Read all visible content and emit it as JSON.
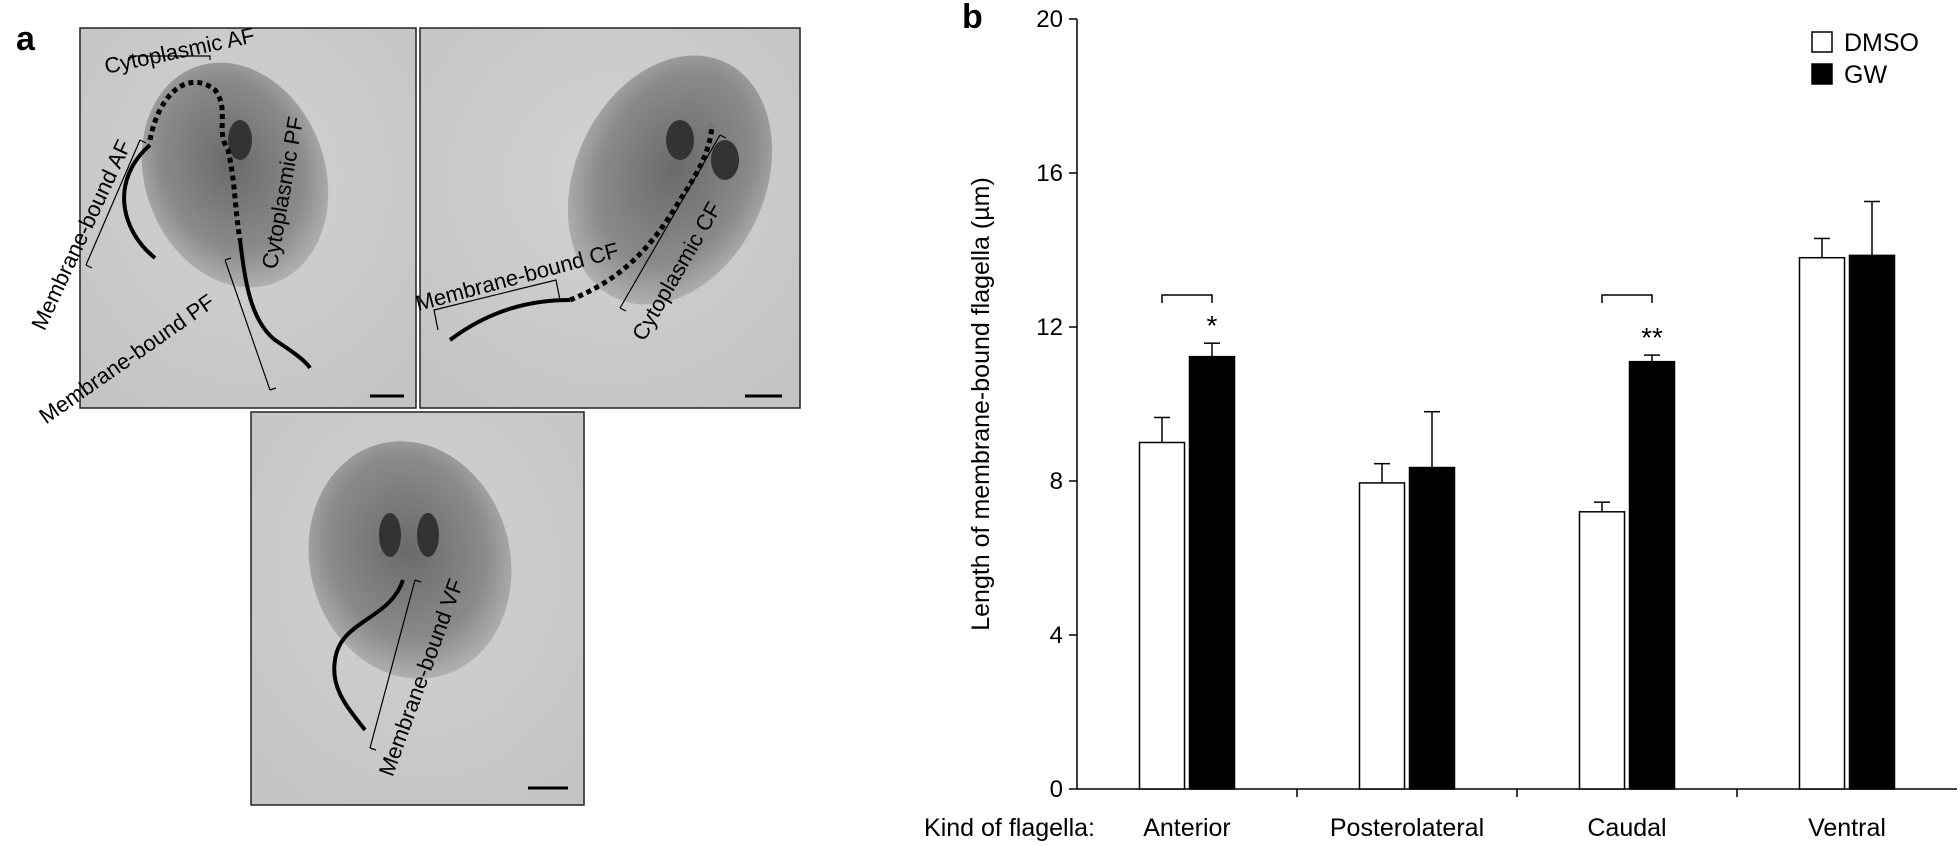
{
  "panel_labels": [
    "a",
    "b"
  ],
  "micrographs": [
    {
      "labels": [
        "Cytoplasmic AF",
        "Membrane-bound AF",
        "Cytoplasmic PF",
        "Membrane-bound PF"
      ]
    },
    {
      "labels": [
        "Membrane-bound CF",
        "Cytoplasmic CF"
      ]
    },
    {
      "labels": [
        "Membrane-bound VF"
      ]
    }
  ],
  "chart_data": {
    "type": "bar",
    "y_label": "Length of membrane-bound flagella (µm)",
    "x_label": "Kind of flagella:",
    "categories": [
      "Anterior",
      "Posterolateral",
      "Caudal",
      "Ventral"
    ],
    "series": [
      {
        "name": "DMSO",
        "color": "#ffffff",
        "values": [
          9.0,
          7.95,
          7.2,
          13.8
        ],
        "errors": [
          0.65,
          0.5,
          0.25,
          0.5
        ]
      },
      {
        "name": "GW",
        "color": "#000000",
        "values": [
          11.23,
          8.35,
          11.1,
          13.86
        ],
        "errors": [
          0.35,
          1.45,
          0.17,
          1.4
        ]
      }
    ],
    "ylim": [
      0,
      20
    ],
    "yticks": [
      0,
      4,
      8,
      12,
      16,
      20
    ],
    "legend": "top-right",
    "annotations": [
      "*",
      "**"
    ]
  }
}
